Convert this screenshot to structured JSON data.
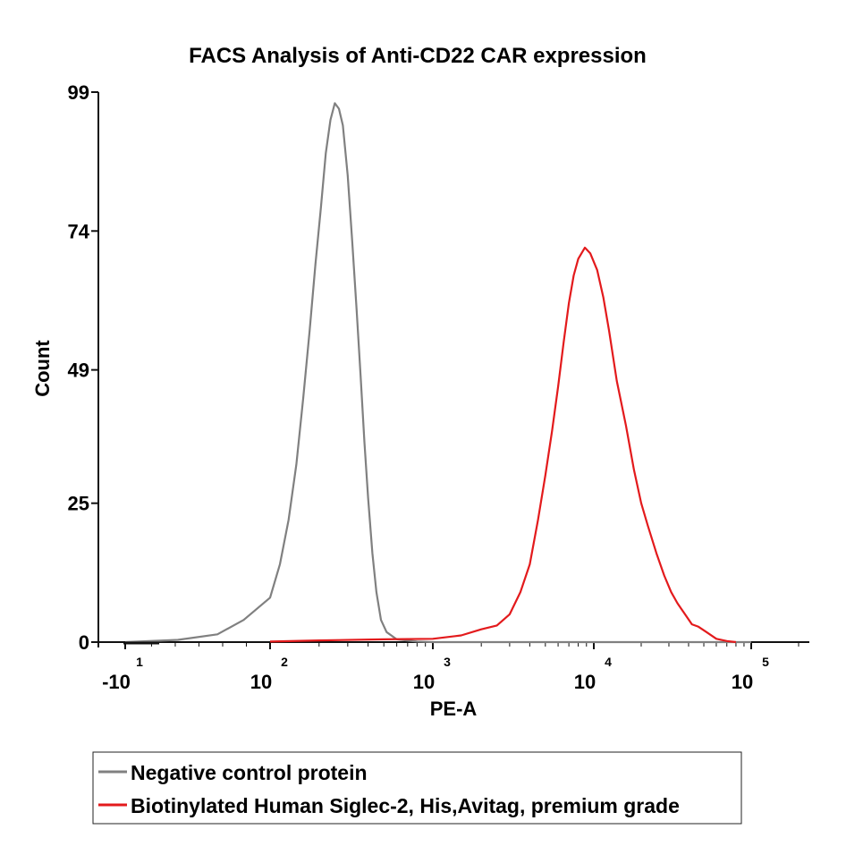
{
  "chart_data": {
    "type": "line",
    "title": "FACS Analysis of Anti-CD22 CAR expression",
    "xlabel": "PE-A",
    "ylabel": "Count",
    "x_scale": "biexponential (log decades)",
    "x_ticks": [
      {
        "base": "-10",
        "exp": "1",
        "value": -10
      },
      {
        "base": "10",
        "exp": "2",
        "value": 100
      },
      {
        "base": "10",
        "exp": "3",
        "value": 1000
      },
      {
        "base": "10",
        "exp": "4",
        "value": 10000
      },
      {
        "base": "10",
        "exp": "5",
        "value": 100000
      }
    ],
    "y_ticks": [
      0,
      25,
      49,
      74,
      99
    ],
    "ylim": [
      0,
      99
    ],
    "grid": false,
    "legend_position": "below-plot",
    "series": [
      {
        "name": "Negative control protein",
        "color": "#808080",
        "points": [
          [
            -10,
            0
          ],
          [
            30,
            0.4
          ],
          [
            60,
            1.4
          ],
          [
            80,
            4
          ],
          [
            100,
            8
          ],
          [
            115,
            14
          ],
          [
            130,
            22
          ],
          [
            145,
            32
          ],
          [
            160,
            44
          ],
          [
            175,
            56
          ],
          [
            190,
            68
          ],
          [
            205,
            78
          ],
          [
            220,
            88
          ],
          [
            235,
            94
          ],
          [
            250,
            97
          ],
          [
            265,
            96
          ],
          [
            280,
            93
          ],
          [
            300,
            84
          ],
          [
            320,
            72
          ],
          [
            340,
            60
          ],
          [
            360,
            48
          ],
          [
            380,
            36
          ],
          [
            400,
            26
          ],
          [
            425,
            16
          ],
          [
            450,
            9
          ],
          [
            480,
            4
          ],
          [
            520,
            1.8
          ],
          [
            600,
            0.5
          ],
          [
            800,
            0.1
          ],
          [
            1000,
            0
          ],
          [
            100000,
            0
          ]
        ]
      },
      {
        "name": "Biotinylated Human Siglec-2, His,Avitag, premium grade",
        "color": "#e31a1c",
        "points": [
          [
            100,
            0.1
          ],
          [
            200,
            0.3
          ],
          [
            500,
            0.5
          ],
          [
            1000,
            0.6
          ],
          [
            1500,
            1.2
          ],
          [
            2000,
            2.3
          ],
          [
            2500,
            3.0
          ],
          [
            3000,
            5.0
          ],
          [
            3500,
            9
          ],
          [
            4000,
            14
          ],
          [
            4500,
            22
          ],
          [
            5000,
            30
          ],
          [
            5500,
            38
          ],
          [
            6000,
            46
          ],
          [
            6500,
            54
          ],
          [
            7000,
            61
          ],
          [
            7500,
            66
          ],
          [
            8000,
            69
          ],
          [
            8800,
            71
          ],
          [
            9500,
            70
          ],
          [
            10500,
            67
          ],
          [
            11500,
            62
          ],
          [
            12500,
            56
          ],
          [
            14000,
            47
          ],
          [
            16000,
            39
          ],
          [
            18000,
            31
          ],
          [
            20000,
            25
          ],
          [
            22000,
            21
          ],
          [
            25000,
            16
          ],
          [
            28000,
            12
          ],
          [
            31000,
            9
          ],
          [
            34000,
            7
          ],
          [
            38000,
            5
          ],
          [
            42000,
            3.2
          ],
          [
            46000,
            2.8
          ],
          [
            52000,
            1.8
          ],
          [
            60000,
            0.6
          ],
          [
            70000,
            0.2
          ],
          [
            80000,
            0
          ]
        ]
      }
    ]
  }
}
